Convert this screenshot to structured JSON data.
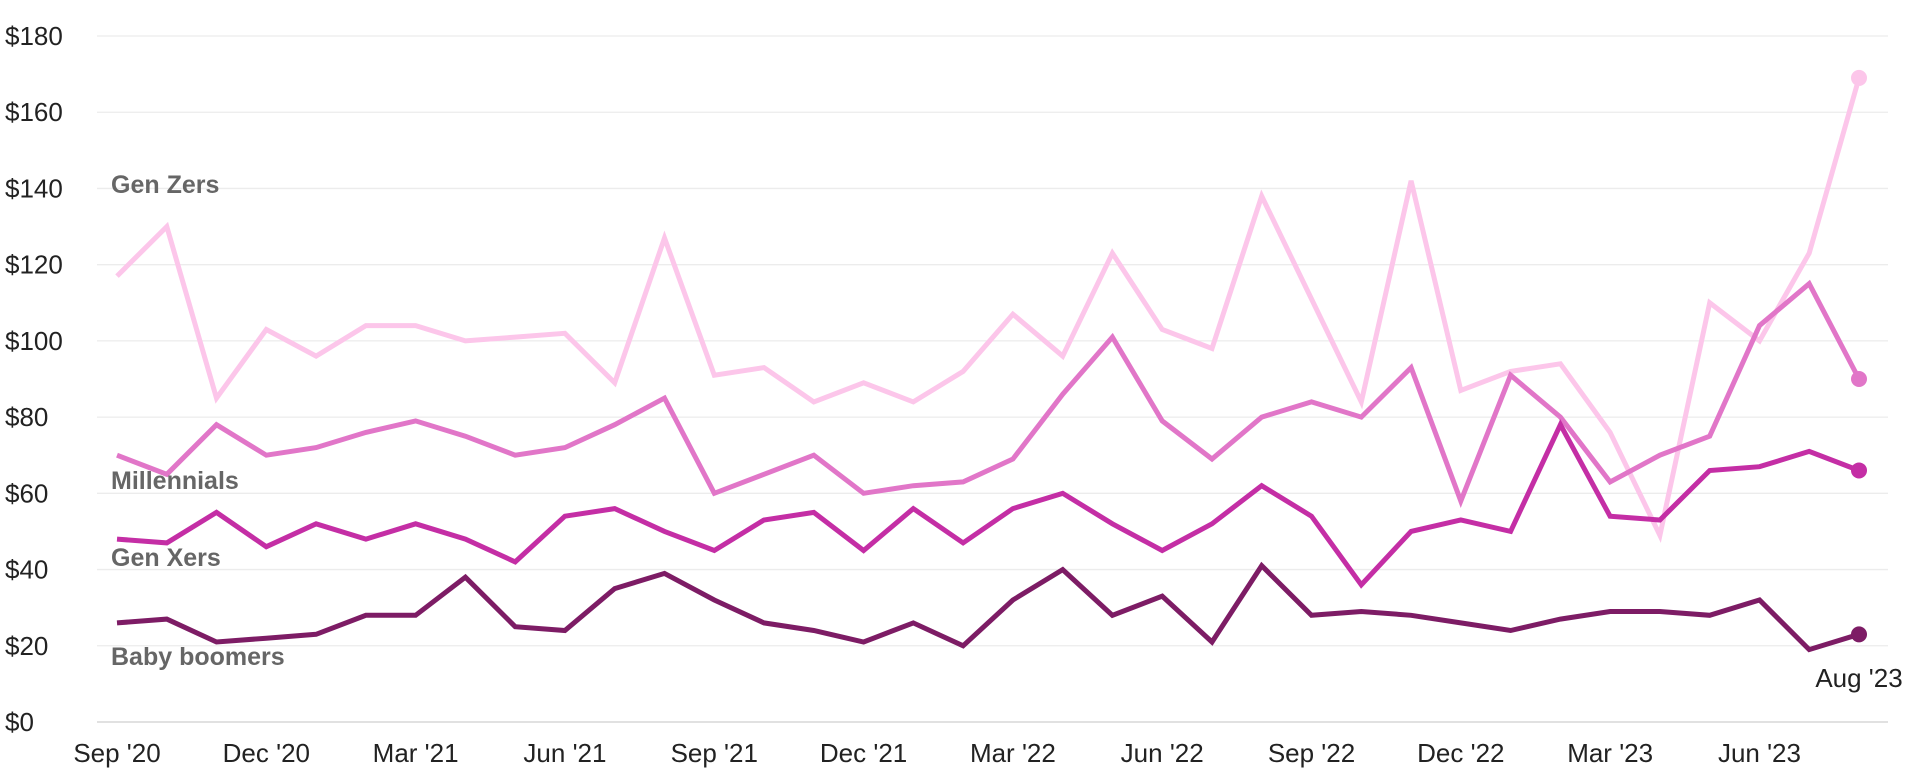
{
  "chart_data": {
    "type": "line",
    "x": [
      "Sep '20",
      "Oct '20",
      "Nov '20",
      "Dec '20",
      "Jan '21",
      "Feb '21",
      "Mar '21",
      "Apr '21",
      "May '21",
      "Jun '21",
      "Jul '21",
      "Aug '21",
      "Sep '21",
      "Oct '21",
      "Nov '21",
      "Dec '21",
      "Jan '22",
      "Feb '22",
      "Mar '22",
      "Apr '22",
      "May '22",
      "Jun '22",
      "Jul '22",
      "Aug '22",
      "Sep '22",
      "Oct '22",
      "Nov '22",
      "Dec '22",
      "Jan '23",
      "Feb '23",
      "Mar '23",
      "Apr '23",
      "May '23",
      "Jun '23",
      "Jul '23",
      "Aug '23"
    ],
    "x_tick_labels": [
      "Sep '20",
      "Dec '20",
      "Mar '21",
      "Jun '21",
      "Sep '21",
      "Dec '21",
      "Mar '22",
      "Jun '22",
      "Sep '22",
      "Dec '22",
      "Mar '23",
      "Jun '23"
    ],
    "y_tick_labels": [
      "$0",
      "$20",
      "$40",
      "$60",
      "$80",
      "$100",
      "$120",
      "$140",
      "$160",
      "$180"
    ],
    "ylim": [
      0,
      180
    ],
    "grid": true,
    "end_label": "Aug '23",
    "series": [
      {
        "name": "Gen Zers",
        "color": "#fcc6ea",
        "values": [
          117,
          130,
          85,
          103,
          96,
          104,
          104,
          100,
          101,
          102,
          89,
          127,
          91,
          93,
          84,
          89,
          84,
          92,
          107,
          96,
          123,
          103,
          98,
          138,
          111,
          84,
          142,
          87,
          92,
          94,
          76,
          49,
          110,
          100,
          123,
          169
        ]
      },
      {
        "name": "Millennials",
        "color": "#e176c8",
        "values": [
          70,
          65,
          78,
          70,
          72,
          76,
          79,
          75,
          70,
          72,
          78,
          85,
          60,
          65,
          70,
          60,
          62,
          63,
          69,
          86,
          101,
          79,
          69,
          80,
          84,
          80,
          93,
          58,
          91,
          80,
          63,
          70,
          75,
          104,
          115,
          90
        ]
      },
      {
        "name": "Gen Xers",
        "color": "#c42ea5",
        "values": [
          48,
          47,
          55,
          46,
          52,
          48,
          52,
          48,
          42,
          54,
          56,
          50,
          45,
          53,
          55,
          45,
          56,
          47,
          56,
          60,
          52,
          45,
          52,
          62,
          54,
          36,
          50,
          53,
          50,
          78,
          54,
          53,
          66,
          67,
          71,
          66
        ]
      },
      {
        "name": "Baby boomers",
        "color": "#7d1c65",
        "values": [
          26,
          27,
          21,
          22,
          23,
          28,
          28,
          38,
          25,
          24,
          35,
          39,
          32,
          26,
          24,
          21,
          26,
          20,
          32,
          40,
          28,
          33,
          21,
          41,
          28,
          29,
          28,
          26,
          24,
          27,
          29,
          29,
          28,
          32,
          19,
          23
        ]
      }
    ]
  }
}
